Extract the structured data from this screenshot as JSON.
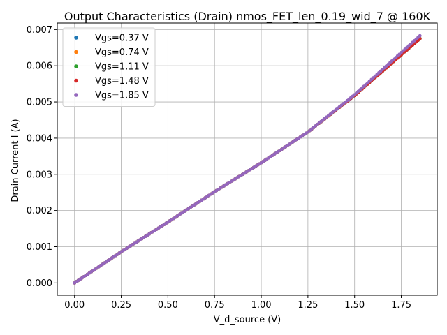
{
  "chart_data": {
    "type": "scatter",
    "title": "Output Characteristics (Drain) nmos_FET_len_0.19_wid_7 @ 160K",
    "xlabel": "V_d_source (V)",
    "ylabel": "Drain Current I (A)",
    "xlim": [
      -0.0925,
      1.9425
    ],
    "ylim": [
      -0.00034,
      0.00718
    ],
    "x_ticks": [
      0.0,
      0.25,
      0.5,
      0.75,
      1.0,
      1.25,
      1.5,
      1.75
    ],
    "x_tick_labels": [
      "0.00",
      "0.25",
      "0.50",
      "0.75",
      "1.00",
      "1.25",
      "1.50",
      "1.75"
    ],
    "y_ticks": [
      0.0,
      0.001,
      0.002,
      0.003,
      0.004,
      0.005,
      0.006,
      0.007
    ],
    "y_tick_labels": [
      "0.000",
      "0.001",
      "0.002",
      "0.003",
      "0.004",
      "0.005",
      "0.006",
      "0.007"
    ],
    "grid": true,
    "legend_position": "upper-left",
    "x_range": [
      0.0,
      1.85
    ],
    "curve_x": [
      0.0,
      0.25,
      0.5,
      0.75,
      1.0,
      1.25,
      1.5,
      1.85
    ],
    "series": [
      {
        "name": "Vgs=0.37 V",
        "color": "#1f77b4",
        "curve_y": [
          0.0,
          0.00086,
          0.00168,
          0.00252,
          0.00332,
          0.00417,
          0.00518,
          0.00675
        ]
      },
      {
        "name": "Vgs=0.74 V",
        "color": "#ff7f0e",
        "curve_y": [
          0.0,
          0.00086,
          0.00168,
          0.00252,
          0.00332,
          0.00417,
          0.00518,
          0.00675
        ]
      },
      {
        "name": "Vgs=1.11 V",
        "color": "#2ca02c",
        "curve_y": [
          0.0,
          0.00086,
          0.00168,
          0.00252,
          0.00332,
          0.00417,
          0.00518,
          0.00675
        ]
      },
      {
        "name": "Vgs=1.48 V",
        "color": "#d62728",
        "curve_y": [
          0.0,
          0.00086,
          0.00168,
          0.00252,
          0.00332,
          0.00417,
          0.00518,
          0.00675
        ]
      },
      {
        "name": "Vgs=1.85 V",
        "color": "#9467bd",
        "curve_y": [
          0.0,
          0.00086,
          0.00168,
          0.00252,
          0.00332,
          0.00417,
          0.0052,
          0.00683
        ]
      }
    ]
  }
}
